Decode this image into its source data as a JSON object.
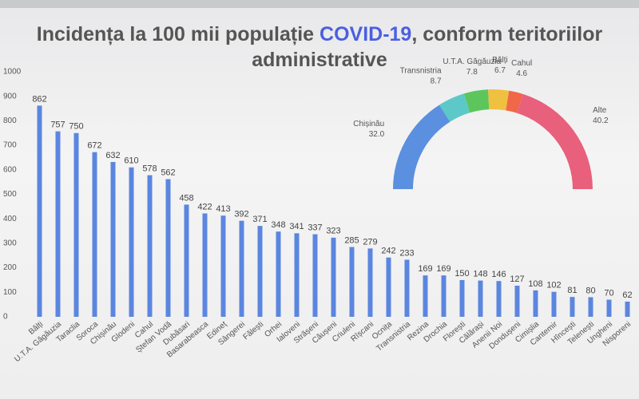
{
  "chart_data": [
    {
      "type": "bar",
      "title": [
        "Incidența la 100 mii populație ",
        "COVID-19",
        ", conform teritoriilor administrative"
      ],
      "categories": [
        "Bălți",
        "U.T.A. Găgăuzia",
        "Taraclia",
        "Soroca",
        "Chișinău",
        "Glodeni",
        "Cahul",
        "Ștefan Vodă",
        "Dubăsari",
        "Basarabeasca",
        "Edineț",
        "Sângerei",
        "Fălești",
        "Orhei",
        "Ialoveni",
        "Strășeni",
        "Căușeni",
        "Criuleni",
        "Rîșcani",
        "Ocnița",
        "Transnistria",
        "Rezina",
        "Drochia",
        "Florești",
        "Călărași",
        "Anenii Noi",
        "Dondușeni",
        "Cimișlia",
        "Cantemir",
        "Hîncești",
        "Telenești",
        "Ungheni",
        "Nisporeni"
      ],
      "values": [
        862,
        757,
        750,
        672,
        632,
        610,
        578,
        562,
        458,
        422,
        413,
        392,
        371,
        348,
        341,
        337,
        323,
        285,
        279,
        242,
        233,
        169,
        169,
        150,
        148,
        146,
        127,
        108,
        102,
        81,
        80,
        70,
        62
      ],
      "color": "#5b86e0",
      "ylim": [
        0,
        1000
      ],
      "yticks": [
        0,
        100,
        200,
        300,
        400,
        500,
        600,
        700,
        800,
        900,
        1000
      ],
      "grid": false
    },
    {
      "type": "pie",
      "categories": [
        "Chișinău",
        "Transnistria",
        "U.T.A. Găgăuzia",
        "Bălți",
        "Cahul",
        "Alte"
      ],
      "values": [
        32.0,
        8.7,
        7.8,
        6.7,
        4.6,
        40.2
      ],
      "value_labels": [
        "32.0",
        "8.7",
        "7.8",
        "6.7",
        "4.6",
        "40.2"
      ],
      "colors": [
        "#5b8fe0",
        "#5cc8c8",
        "#5cc65c",
        "#f0c040",
        "#f06848",
        "#e8607c"
      ]
    }
  ]
}
